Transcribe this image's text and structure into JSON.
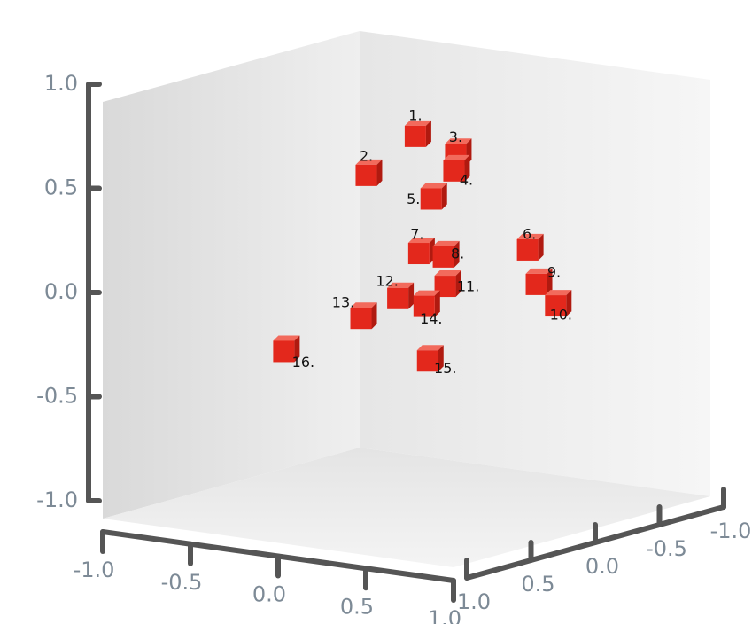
{
  "chart_data": {
    "type": "scatter3d",
    "color": "#e3281c",
    "labels": [
      "1.",
      "2.",
      "3.",
      "4.",
      "5.",
      "6.",
      "7.",
      "8.",
      "9.",
      "10.",
      "11.",
      "12.",
      "13.",
      "14.",
      "15.",
      "16."
    ],
    "x": [
      0.05,
      -0.23,
      0.28,
      0.27,
      0.14,
      0.69,
      0.07,
      0.21,
      0.74,
      0.85,
      0.22,
      -0.05,
      -0.26,
      0.1,
      0.12,
      -0.7
    ],
    "y": [
      0.8,
      0.58,
      0.74,
      0.66,
      0.51,
      0.33,
      0.24,
      0.24,
      0.17,
      0.08,
      0.1,
      0.01,
      -0.11,
      -0.01,
      -0.27,
      -0.32
    ],
    "z": [
      0,
      0,
      0,
      0,
      0,
      0,
      0,
      0,
      0,
      0,
      0,
      0,
      0,
      0,
      0,
      0
    ],
    "xlim": [
      -1,
      1
    ],
    "ylim": [
      -1,
      1
    ],
    "zlim": [
      -1,
      1
    ],
    "xticks": [
      {
        "value": -1,
        "label": "-1.0"
      },
      -0.5,
      {
        "value": 0,
        "label": "0.0"
      },
      0.5,
      {
        "value": 1,
        "label": "1.0"
      }
    ],
    "yticks": [
      {
        "value": -1,
        "label": "-1.0"
      },
      -0.5,
      {
        "value": 0,
        "label": "0.0"
      },
      0.5,
      {
        "value": 1,
        "label": "1.0"
      }
    ],
    "zticks": [
      {
        "value": -1,
        "label": "-1.0"
      },
      -0.5,
      {
        "value": 0,
        "label": "0.0"
      },
      0.5,
      {
        "value": 1,
        "label": "1.0"
      }
    ]
  }
}
